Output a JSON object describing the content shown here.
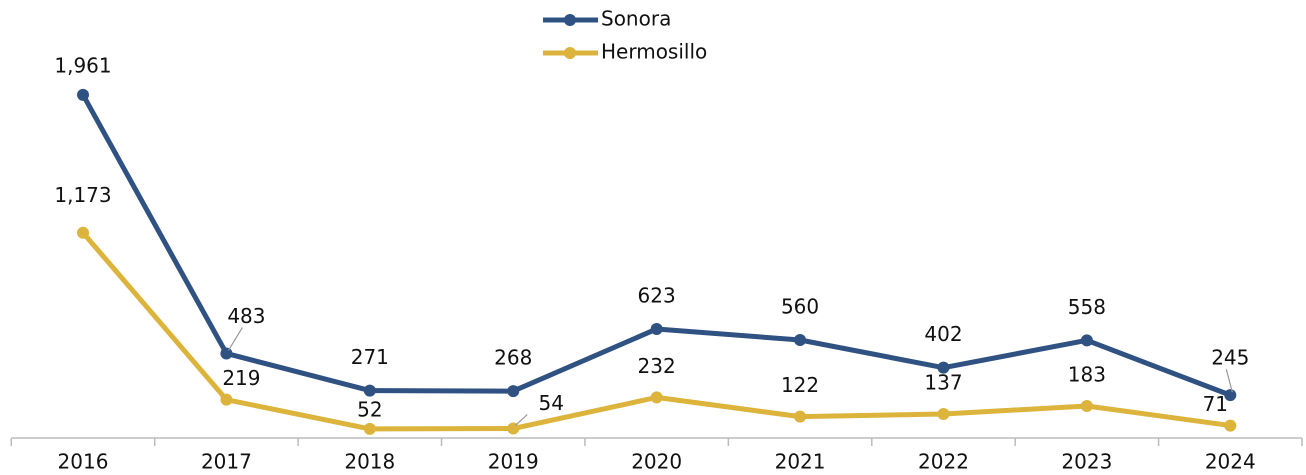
{
  "chart_data": {
    "type": "line",
    "categories": [
      "2016",
      "2017",
      "2018",
      "2019",
      "2020",
      "2021",
      "2022",
      "2023",
      "2024"
    ],
    "series": [
      {
        "name": "Sonora",
        "color": "#2f5283",
        "values": [
          1961,
          483,
          271,
          268,
          623,
          560,
          402,
          558,
          245
        ],
        "value_labels": [
          "1,961",
          "483",
          "271",
          "268",
          "623",
          "560",
          "402",
          "558",
          "245"
        ]
      },
      {
        "name": "Hermosillo",
        "color": "#dcb43c",
        "values": [
          1173,
          219,
          52,
          54,
          232,
          122,
          137,
          183,
          71
        ],
        "value_labels": [
          "1,173",
          "219",
          "52",
          "54",
          "232",
          "122",
          "137",
          "183",
          "71"
        ]
      }
    ],
    "ylim": [
      0,
      2000
    ],
    "legend": "top"
  }
}
